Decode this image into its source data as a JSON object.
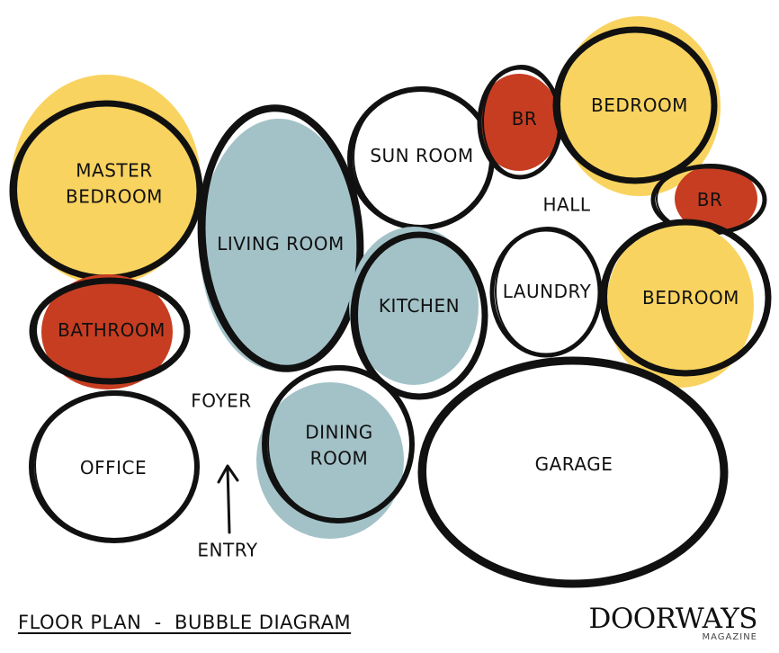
{
  "colors": {
    "private": "#f9d35f",
    "service": "#c73d21",
    "social": "#a3c2c8",
    "outline": "#111111"
  },
  "rooms": [
    {
      "id": "master-bedroom",
      "lines": [
        "MASTER",
        "BEDROOM"
      ],
      "fill": "private"
    },
    {
      "id": "living-room",
      "lines": [
        "LIVING ROOM"
      ],
      "fill": "social"
    },
    {
      "id": "sun-room",
      "lines": [
        "SUN ROOM"
      ],
      "fill": "none"
    },
    {
      "id": "br-1",
      "lines": [
        "BR"
      ],
      "fill": "service"
    },
    {
      "id": "bedroom-1",
      "lines": [
        "BEDROOM"
      ],
      "fill": "private"
    },
    {
      "id": "br-2",
      "lines": [
        "BR"
      ],
      "fill": "service"
    },
    {
      "id": "bathroom",
      "lines": [
        "BATHROOM"
      ],
      "fill": "service"
    },
    {
      "id": "kitchen",
      "lines": [
        "KITCHEN"
      ],
      "fill": "social"
    },
    {
      "id": "laundry",
      "lines": [
        "LAUNDRY"
      ],
      "fill": "none"
    },
    {
      "id": "bedroom-2",
      "lines": [
        "BEDROOM"
      ],
      "fill": "private"
    },
    {
      "id": "office",
      "lines": [
        "OFFICE"
      ],
      "fill": "none"
    },
    {
      "id": "dining-room",
      "lines": [
        "DINING",
        "ROOM"
      ],
      "fill": "social"
    },
    {
      "id": "garage",
      "lines": [
        "GARAGE"
      ],
      "fill": "none"
    }
  ],
  "labels": {
    "hall": "HALL",
    "foyer": "FOYER",
    "entry": "ENTRY"
  },
  "caption": "FLOOR PLAN  -  BUBBLE DIAGRAM",
  "brand": {
    "name": "DOORWAYS",
    "sub": "MAGAZINE"
  }
}
